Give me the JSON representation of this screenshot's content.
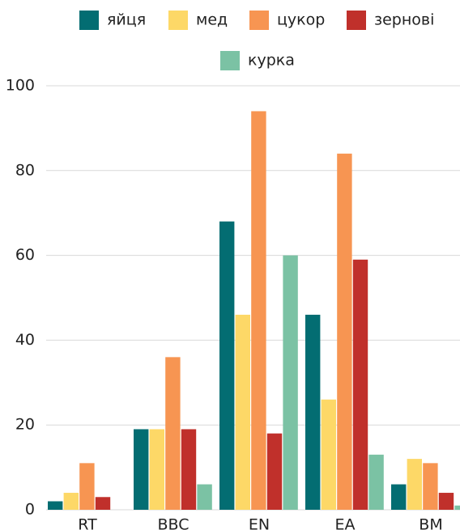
{
  "chart_data": {
    "type": "bar",
    "categories": [
      "RT",
      "BBC",
      "EN",
      "EA",
      "BM"
    ],
    "series": [
      {
        "name": "яйця",
        "color": "#036d72",
        "values": [
          2,
          19,
          68,
          46,
          6
        ]
      },
      {
        "name": "мед",
        "color": "#fdd867",
        "values": [
          4,
          19,
          46,
          26,
          12
        ]
      },
      {
        "name": "цукор",
        "color": "#f79552",
        "values": [
          11,
          36,
          94,
          84,
          11
        ]
      },
      {
        "name": "зернові",
        "color": "#c0302b",
        "values": [
          3,
          19,
          18,
          59,
          4
        ]
      },
      {
        "name": "курка",
        "color": "#7bc2a4",
        "values": [
          0,
          6,
          60,
          13,
          1
        ]
      }
    ],
    "ylim": [
      0,
      100
    ],
    "yticks": [
      0,
      20,
      40,
      60,
      80,
      100
    ],
    "grid": true,
    "legend": "top"
  }
}
